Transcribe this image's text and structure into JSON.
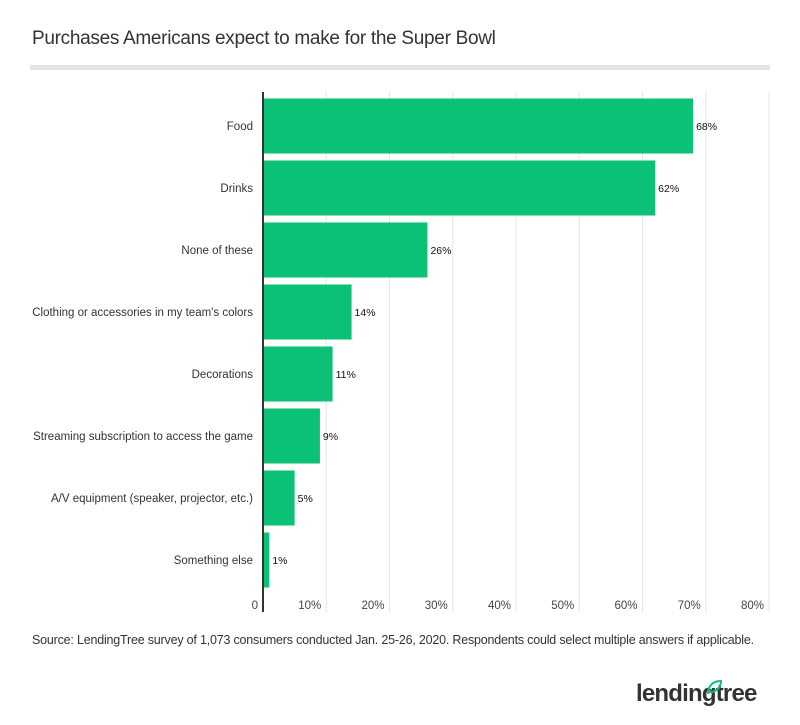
{
  "chart_data": {
    "type": "bar",
    "orientation": "horizontal",
    "title": "Purchases Americans expect to make for the Super Bowl",
    "categories": [
      "Food",
      "Drinks",
      "None of these",
      "Clothing or accessories in my team's colors",
      "Decorations",
      "Streaming subscription to access the game",
      "A/V equipment (speaker, projector, etc.)",
      "Something else"
    ],
    "values": [
      68,
      62,
      26,
      14,
      11,
      9,
      5,
      1
    ],
    "value_labels": [
      "68%",
      "62%",
      "26%",
      "14%",
      "11%",
      "9%",
      "5%",
      "1%"
    ],
    "xlim": [
      0,
      80
    ],
    "x_ticks": [
      "0",
      "10%",
      "20%",
      "30%",
      "40%",
      "50%",
      "60%",
      "70%",
      "80%"
    ],
    "grid": true,
    "bar_color": "#0bc175",
    "xlabel": "",
    "ylabel": ""
  },
  "source": "Source: LendingTree survey of 1,073 consumers conducted Jan. 25-26, 2020. Respondents could select multiple answers if applicable.",
  "logo": "lendingtree"
}
